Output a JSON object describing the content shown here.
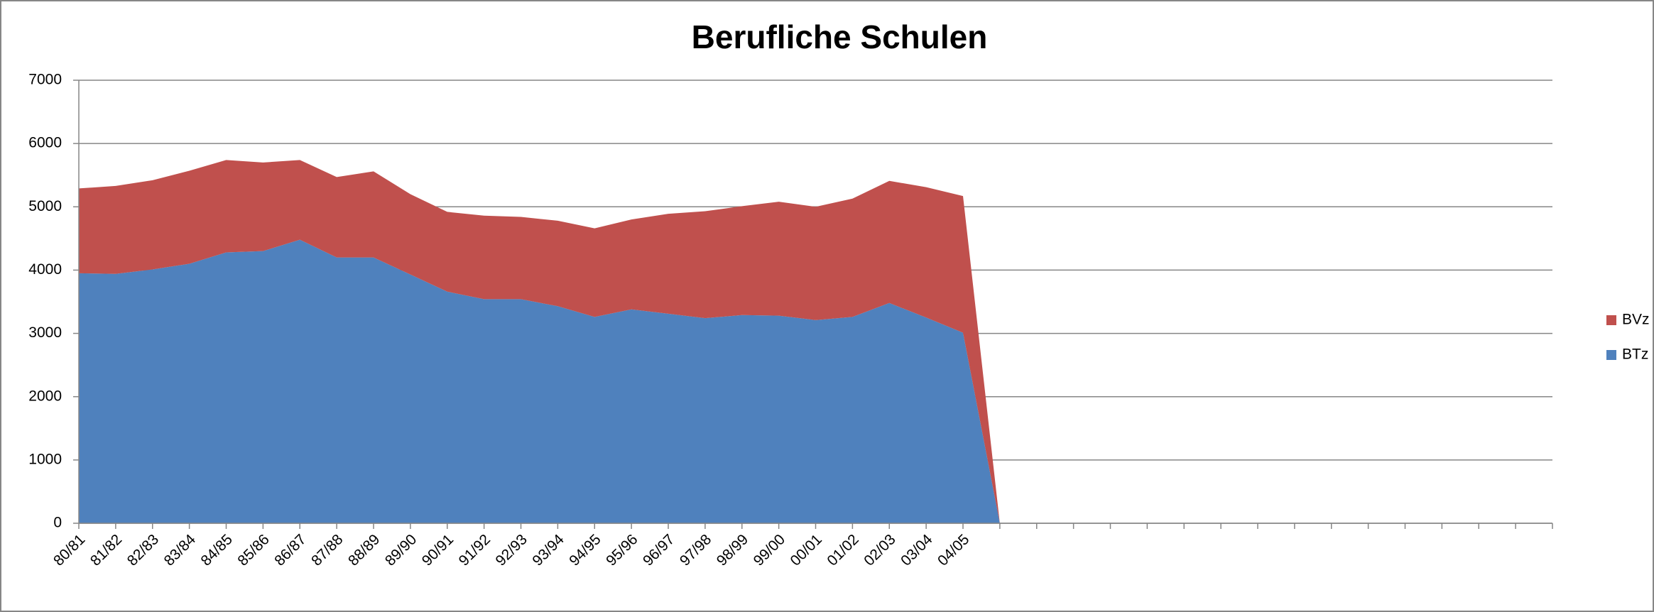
{
  "chart_data": {
    "type": "stacked_area",
    "title": "Berufliche Schulen",
    "categories": [
      "80/81",
      "81/82",
      "82/83",
      "83/84",
      "84/85",
      "85/86",
      "86/87",
      "87/88",
      "88/89",
      "89/90",
      "90/91",
      "91/92",
      "92/93",
      "93/94",
      "94/95",
      "95/96",
      "96/97",
      "97/98",
      "98/99",
      "99/00",
      "00/01",
      "01/02",
      "02/03",
      "03/04",
      "04/05",
      null,
      null,
      null,
      null,
      null,
      null,
      null,
      null,
      null,
      null,
      null,
      null,
      null,
      null,
      null,
      null
    ],
    "series": [
      {
        "name": "BTz",
        "color": "#4f81bd",
        "values": [
          3950,
          3940,
          4010,
          4100,
          4280,
          4300,
          4480,
          4200,
          4200,
          3930,
          3660,
          3540,
          3540,
          3430,
          3260,
          3380,
          3310,
          3240,
          3290,
          3280,
          3210,
          3260,
          3480,
          3250,
          3010,
          0,
          null,
          null,
          null,
          null,
          null,
          null,
          null,
          null,
          null,
          null,
          null,
          null,
          null,
          null,
          null
        ]
      },
      {
        "name": "BVz",
        "color": "#c0504d",
        "values": [
          1340,
          1390,
          1410,
          1470,
          1460,
          1400,
          1260,
          1270,
          1360,
          1270,
          1260,
          1320,
          1300,
          1350,
          1400,
          1420,
          1580,
          1690,
          1720,
          1800,
          1790,
          1870,
          1930,
          2060,
          2160,
          0,
          null,
          null,
          null,
          null,
          null,
          null,
          null,
          null,
          null,
          null,
          null,
          null,
          null,
          null,
          null
        ]
      }
    ],
    "ylim": [
      0,
      7000
    ],
    "yticks": [
      0,
      1000,
      2000,
      3000,
      4000,
      5000,
      6000,
      7000
    ],
    "grid": true,
    "legend": "right"
  }
}
